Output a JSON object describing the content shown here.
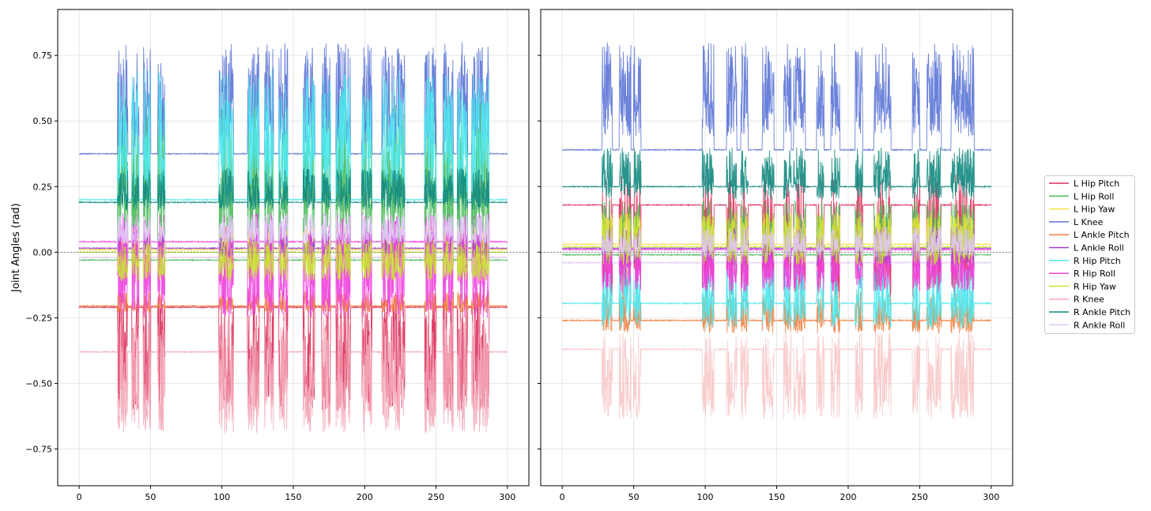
{
  "chart_data": [
    {
      "type": "line",
      "ylabel": "Joint Angles (rad)",
      "xlabel": "",
      "xlim": [
        -15,
        315
      ],
      "ylim": [
        -0.89,
        0.925
      ],
      "xticks": [
        0,
        50,
        100,
        150,
        200,
        250,
        300
      ],
      "yticks": [
        -0.75,
        -0.5,
        -0.25,
        0.0,
        0.25,
        0.5,
        0.75
      ],
      "ytick_labels": [
        "−0.75",
        "−0.50",
        "−0.25",
        "0.00",
        "0.25",
        "0.50",
        "0.75"
      ],
      "grid": true,
      "zero_reference_line": "dotted gray",
      "active_intervals": [
        [
          27,
          34
        ],
        [
          37,
          42
        ],
        [
          45,
          50
        ],
        [
          55,
          60
        ],
        [
          98,
          108
        ],
        [
          118,
          126
        ],
        [
          130,
          136
        ],
        [
          140,
          146
        ],
        [
          157,
          165
        ],
        [
          170,
          176
        ],
        [
          180,
          190
        ],
        [
          198,
          205
        ],
        [
          212,
          228
        ],
        [
          242,
          250
        ],
        [
          255,
          262
        ],
        [
          265,
          272
        ],
        [
          275,
          287
        ]
      ],
      "series": [
        {
          "name": "L Hip Pitch",
          "color": "#dc2f5a",
          "rest": -0.21,
          "active": [
            -0.72,
            -0.15
          ]
        },
        {
          "name": "L Hip Roll",
          "color": "#4cbb5c",
          "rest": -0.03,
          "active": [
            -0.15,
            0.6
          ]
        },
        {
          "name": "L Hip Yaw",
          "color": "#f0e040",
          "rest": 0.01,
          "active": [
            -0.1,
            0.1
          ]
        },
        {
          "name": "L Knee",
          "color": "#5b74d6",
          "rest": 0.375,
          "active": [
            0.3,
            0.8
          ]
        },
        {
          "name": "L Ankle Pitch",
          "color": "#f08040",
          "rest": -0.205,
          "active": [
            -0.25,
            -0.15
          ]
        },
        {
          "name": "L Ankle Roll",
          "color": "#9a3fd0",
          "rest": 0.015,
          "active": [
            -0.05,
            0.08
          ]
        },
        {
          "name": "R Hip Pitch",
          "color": "#4ee8f0",
          "rest": 0.2,
          "active": [
            0.1,
            0.7
          ]
        },
        {
          "name": "R Hip Roll",
          "color": "#ee40dd",
          "rest": 0.04,
          "active": [
            -0.35,
            0.15
          ]
        },
        {
          "name": "R Hip Yaw",
          "color": "#c8e632",
          "rest": 0.0,
          "active": [
            -0.15,
            0.05
          ]
        },
        {
          "name": "R Knee",
          "color": "#f4a8b8",
          "rest": -0.38,
          "active": [
            -0.8,
            -0.25
          ]
        },
        {
          "name": "R Ankle Pitch",
          "color": "#128a80",
          "rest": 0.19,
          "active": [
            0.12,
            0.32
          ]
        },
        {
          "name": "R Ankle Roll",
          "color": "#e0c8f8",
          "rest": -0.02,
          "active": [
            0.0,
            0.15
          ]
        }
      ]
    },
    {
      "type": "line",
      "xlim": [
        -15,
        315
      ],
      "ylim": [
        -0.89,
        0.925
      ],
      "xticks": [
        0,
        50,
        100,
        150,
        200,
        250,
        300
      ],
      "grid": true,
      "zero_reference_line": "dotted gray",
      "active_intervals": [
        [
          28,
          35
        ],
        [
          40,
          48
        ],
        [
          50,
          55
        ],
        [
          98,
          106
        ],
        [
          115,
          122
        ],
        [
          125,
          130
        ],
        [
          140,
          148
        ],
        [
          155,
          160
        ],
        [
          162,
          170
        ],
        [
          178,
          183
        ],
        [
          188,
          194
        ],
        [
          205,
          210
        ],
        [
          218,
          230
        ],
        [
          245,
          250
        ],
        [
          255,
          265
        ],
        [
          272,
          288
        ]
      ],
      "series": [
        {
          "name": "L Hip Pitch",
          "color": "#dc2f5a",
          "rest": 0.18,
          "active": [
            -0.3,
            0.3
          ]
        },
        {
          "name": "L Hip Roll",
          "color": "#4cbb5c",
          "rest": -0.01,
          "active": [
            -0.1,
            0.2
          ]
        },
        {
          "name": "L Hip Yaw",
          "color": "#f0e040",
          "rest": 0.03,
          "active": [
            -0.05,
            0.15
          ]
        },
        {
          "name": "L Knee",
          "color": "#5b74d6",
          "rest": 0.39,
          "active": [
            0.35,
            0.8
          ]
        },
        {
          "name": "L Ankle Pitch",
          "color": "#f08040",
          "rest": -0.26,
          "active": [
            -0.35,
            -0.15
          ]
        },
        {
          "name": "L Ankle Roll",
          "color": "#9a3fd0",
          "rest": 0.015,
          "active": [
            -0.1,
            0.1
          ]
        },
        {
          "name": "R Hip Pitch",
          "color": "#4ee8f0",
          "rest": -0.195,
          "active": [
            -0.35,
            -0.05
          ]
        },
        {
          "name": "R Hip Roll",
          "color": "#ee40dd",
          "rest": 0.01,
          "active": [
            -0.2,
            0.05
          ]
        },
        {
          "name": "R Hip Yaw",
          "color": "#c8e632",
          "rest": 0.02,
          "active": [
            -0.1,
            0.15
          ]
        },
        {
          "name": "R Knee",
          "color": "#f8c8c8",
          "rest": -0.37,
          "active": [
            -0.72,
            -0.3
          ]
        },
        {
          "name": "R Ankle Pitch",
          "color": "#128a80",
          "rest": 0.25,
          "active": [
            0.15,
            0.4
          ]
        },
        {
          "name": "R Ankle Roll",
          "color": "#e0c8f8",
          "rest": -0.04,
          "active": [
            -0.05,
            0.1
          ]
        }
      ]
    }
  ]
}
